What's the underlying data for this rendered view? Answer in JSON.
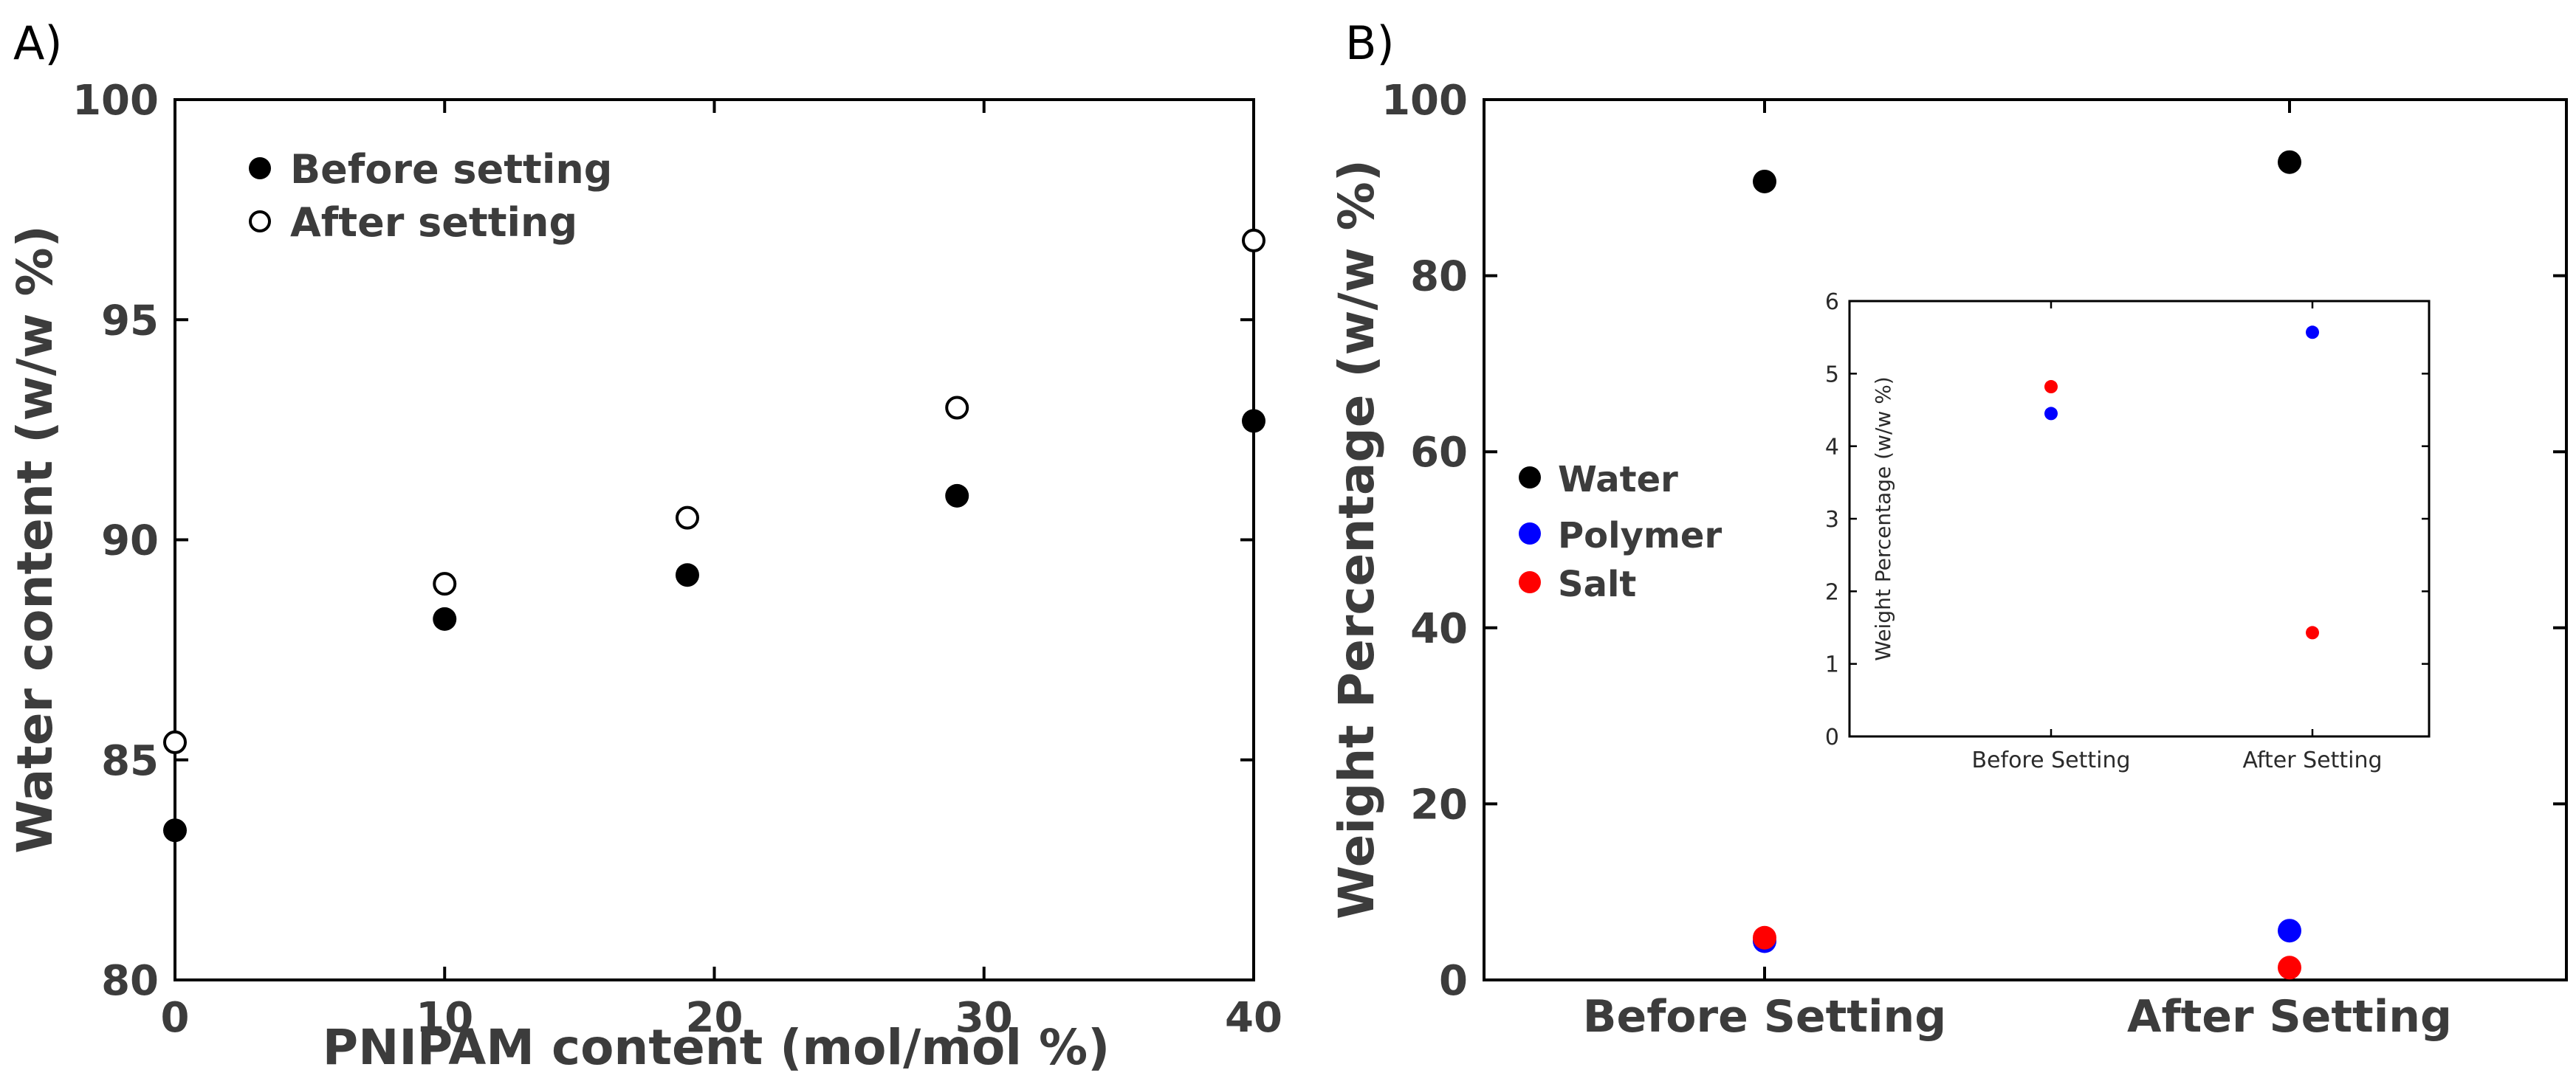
{
  "chart_data": [
    {
      "panel_label": "A)",
      "type": "scatter",
      "title": "",
      "xlabel": "PNIPAM content (mol/mol %)",
      "ylabel": "Water content (w/w %)",
      "xlim": [
        0,
        40
      ],
      "ylim": [
        80,
        100
      ],
      "xticks": [
        "0",
        "10",
        "20",
        "30",
        "40"
      ],
      "yticks": [
        "80",
        "85",
        "90",
        "95",
        "100"
      ],
      "legend_position": "top-left",
      "series": [
        {
          "name": "Before setting",
          "marker": "filled",
          "color": "#000000",
          "x": [
            0,
            10,
            19,
            29,
            40
          ],
          "y": [
            83.4,
            88.2,
            89.2,
            91.0,
            92.7
          ]
        },
        {
          "name": "After setting",
          "marker": "open",
          "color": "#000000",
          "x": [
            0,
            10,
            19,
            29,
            40
          ],
          "y": [
            85.4,
            89.0,
            90.5,
            93.0,
            96.8
          ]
        }
      ]
    },
    {
      "panel_label": "B)",
      "type": "scatter",
      "title": "",
      "xlabel": "",
      "ylabel": "Weight Percentage (w/w %)",
      "categories": [
        "Before Setting",
        "After Setting"
      ],
      "ylim": [
        0,
        100
      ],
      "yticks": [
        "0",
        "20",
        "40",
        "60",
        "80",
        "100"
      ],
      "legend_position": "center-left",
      "series": [
        {
          "name": "Water",
          "color": "#000000",
          "values": [
            90.7,
            92.9
          ]
        },
        {
          "name": "Polymer",
          "color": "#0000ff",
          "values": [
            4.4,
            5.6
          ]
        },
        {
          "name": "Salt",
          "color": "#ff0000",
          "values": [
            4.8,
            1.4
          ]
        }
      ],
      "inset": {
        "type": "scatter",
        "ylabel": "Weight Percentage (w/w %)",
        "categories": [
          "Before Setting",
          "After Setting"
        ],
        "ylim": [
          0,
          6
        ],
        "yticks": [
          "0",
          "1",
          "2",
          "3",
          "4",
          "5",
          "6"
        ],
        "series": [
          {
            "name": "Polymer",
            "color": "#0000ff",
            "values": [
              4.45,
              5.57
            ]
          },
          {
            "name": "Salt",
            "color": "#ff0000",
            "values": [
              4.82,
              1.43
            ]
          }
        ]
      }
    }
  ]
}
